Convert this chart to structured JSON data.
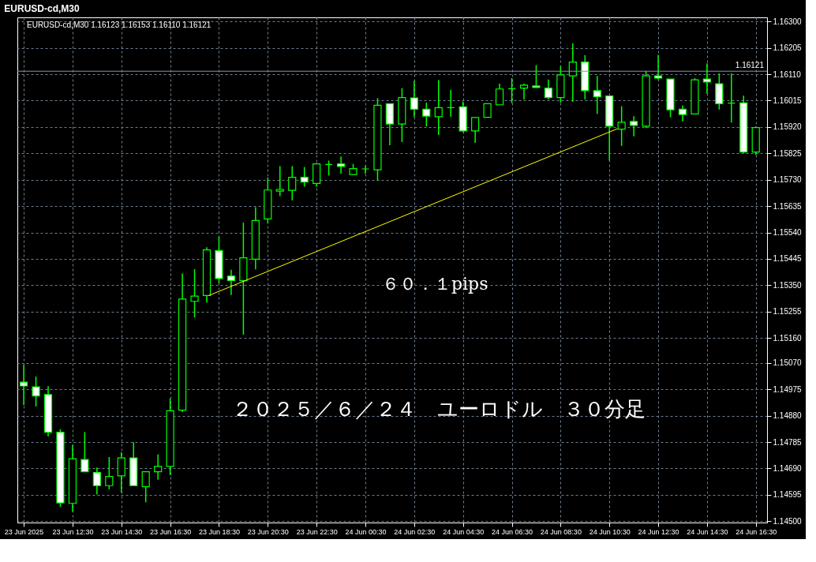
{
  "chart_data": {
    "type": "candlestick",
    "title": "EURUSD-cd,M30",
    "annotations": [
      "EURUSD-cd,M30  1.16123 1.16153 1.16110 1.16121",
      "６０．１pips",
      "２０２５／６／２４　ユーロドル　３０分足"
    ],
    "x": [
      "2025-06-23T10:30",
      "2025-06-23T11:00",
      "2025-06-23T11:30",
      "2025-06-23T12:00",
      "2025-06-23T12:30",
      "2025-06-23T13:00",
      "2025-06-23T13:30",
      "2025-06-23T14:00",
      "2025-06-23T14:30",
      "2025-06-23T15:00",
      "2025-06-23T15:30",
      "2025-06-23T16:00",
      "2025-06-23T16:30",
      "2025-06-23T17:00",
      "2025-06-23T17:30",
      "2025-06-23T18:00",
      "2025-06-23T18:30",
      "2025-06-23T19:00",
      "2025-06-23T19:30",
      "2025-06-23T20:00",
      "2025-06-23T20:30",
      "2025-06-23T21:00",
      "2025-06-23T21:30",
      "2025-06-23T22:00",
      "2025-06-23T22:30",
      "2025-06-23T23:00",
      "2025-06-23T23:30",
      "2025-06-24T00:00",
      "2025-06-24T00:30",
      "2025-06-24T01:00",
      "2025-06-24T01:30",
      "2025-06-24T02:00",
      "2025-06-24T02:30",
      "2025-06-24T03:00",
      "2025-06-24T03:30",
      "2025-06-24T04:00",
      "2025-06-24T04:30",
      "2025-06-24T05:00",
      "2025-06-24T05:30",
      "2025-06-24T06:00",
      "2025-06-24T06:30",
      "2025-06-24T07:00",
      "2025-06-24T07:30",
      "2025-06-24T08:00",
      "2025-06-24T08:30",
      "2025-06-24T09:00",
      "2025-06-24T09:30",
      "2025-06-24T10:00",
      "2025-06-24T10:30",
      "2025-06-24T11:00",
      "2025-06-24T11:30",
      "2025-06-24T12:00",
      "2025-06-24T12:30",
      "2025-06-24T13:00",
      "2025-06-24T13:30",
      "2025-06-24T14:00",
      "2025-06-24T14:30",
      "2025-06-24T15:00",
      "2025-06-24T15:30",
      "2025-06-24T16:00",
      "2025-06-24T16:30"
    ],
    "ohlc": [
      [
        1.15001,
        1.15063,
        1.14918,
        1.14987
      ],
      [
        1.14984,
        1.15021,
        1.14913,
        1.14951
      ],
      [
        1.14956,
        1.14986,
        1.14805,
        1.1482
      ],
      [
        1.1482,
        1.14831,
        1.14552,
        1.14566
      ],
      [
        1.14564,
        1.14774,
        1.14535,
        1.14725
      ],
      [
        1.14722,
        1.14821,
        1.14678,
        1.14678
      ],
      [
        1.14675,
        1.14693,
        1.14596,
        1.14628
      ],
      [
        1.14628,
        1.14731,
        1.14615,
        1.14661
      ],
      [
        1.14663,
        1.14748,
        1.14603,
        1.14728
      ],
      [
        1.14728,
        1.14784,
        1.14628,
        1.14628
      ],
      [
        1.14624,
        1.14678,
        1.14568,
        1.14678
      ],
      [
        1.14678,
        1.1474,
        1.14649,
        1.14697
      ],
      [
        1.14697,
        1.14942,
        1.14666,
        1.14898
      ],
      [
        1.149,
        1.15392,
        1.14893,
        1.153
      ],
      [
        1.15292,
        1.15408,
        1.15234,
        1.15311
      ],
      [
        1.15313,
        1.15487,
        1.15287,
        1.15477
      ],
      [
        1.15475,
        1.15525,
        1.15357,
        1.15374
      ],
      [
        1.15383,
        1.15406,
        1.15315,
        1.15367
      ],
      [
        1.15366,
        1.15576,
        1.15172,
        1.15449
      ],
      [
        1.15444,
        1.15631,
        1.15407,
        1.15583
      ],
      [
        1.15589,
        1.15738,
        1.15573,
        1.15693
      ],
      [
        1.15689,
        1.15779,
        1.15671,
        1.15695
      ],
      [
        1.15692,
        1.15779,
        1.15656,
        1.15739
      ],
      [
        1.15739,
        1.15776,
        1.15705,
        1.15722
      ],
      [
        1.15717,
        1.1579,
        1.15705,
        1.15787
      ],
      [
        1.15785,
        1.15799,
        1.15745,
        1.15785
      ],
      [
        1.15787,
        1.15814,
        1.15752,
        1.15778
      ],
      [
        1.15749,
        1.15787,
        1.15749,
        1.1577
      ],
      [
        1.15769,
        1.1578,
        1.15752,
        1.15769
      ],
      [
        1.15766,
        1.16024,
        1.15727,
        1.15998
      ],
      [
        1.16004,
        1.16004,
        1.15854,
        1.15931
      ],
      [
        1.15931,
        1.1606,
        1.15866,
        1.16026
      ],
      [
        1.16025,
        1.16086,
        1.15955,
        1.15984
      ],
      [
        1.15984,
        1.16008,
        1.15922,
        1.15959
      ],
      [
        1.15957,
        1.16089,
        1.15891,
        1.1599
      ],
      [
        1.1599,
        1.16054,
        1.15957,
        1.1599
      ],
      [
        1.15993,
        1.16012,
        1.15901,
        1.15906
      ],
      [
        1.15906,
        1.15954,
        1.15863,
        1.15954
      ],
      [
        1.15955,
        1.16004,
        1.15955,
        1.16004
      ],
      [
        1.16,
        1.16076,
        1.16,
        1.16057
      ],
      [
        1.16058,
        1.16096,
        1.16006,
        1.16058
      ],
      [
        1.1606,
        1.16076,
        1.16019,
        1.16071
      ],
      [
        1.16068,
        1.16143,
        1.16062,
        1.16062
      ],
      [
        1.1606,
        1.16091,
        1.16019,
        1.16026
      ],
      [
        1.16026,
        1.16139,
        1.16008,
        1.16108
      ],
      [
        1.16104,
        1.16221,
        1.16011,
        1.16154
      ],
      [
        1.16154,
        1.16179,
        1.16019,
        1.16051
      ],
      [
        1.16051,
        1.16104,
        1.15967,
        1.16029
      ],
      [
        1.16032,
        1.16032,
        1.15799,
        1.15923
      ],
      [
        1.15912,
        1.15995,
        1.15852,
        1.15937
      ],
      [
        1.1594,
        1.15959,
        1.15886,
        1.15926
      ],
      [
        1.15923,
        1.16121,
        1.15916,
        1.16104
      ],
      [
        1.16104,
        1.1618,
        1.16091,
        1.16096
      ],
      [
        1.16093,
        1.16093,
        1.15955,
        1.15982
      ],
      [
        1.15984,
        1.15998,
        1.1594,
        1.15965
      ],
      [
        1.15967,
        1.16096,
        1.15967,
        1.1609
      ],
      [
        1.16093,
        1.16149,
        1.16039,
        1.16082
      ],
      [
        1.16076,
        1.16113,
        1.15983,
        1.16004
      ],
      [
        1.16006,
        1.16113,
        1.15936,
        1.16006
      ],
      [
        1.16007,
        1.16033,
        1.15826,
        1.1583
      ],
      [
        1.1583,
        1.15922,
        1.15819,
        1.15918
      ]
    ],
    "series": [
      {
        "type": "line",
        "color": "#ffff00",
        "x": [
          "2025-06-23T18:05",
          "2025-06-24T10:50"
        ],
        "values": [
          1.15313,
          1.15914
        ]
      }
    ],
    "xlim": [
      "2025-06-23T10:24",
      "2025-06-24T16:48"
    ],
    "xticks": [
      {
        "value": "2025-06-23T10:30",
        "label": "23 Jun 2025"
      },
      {
        "value": "2025-06-23T12:30",
        "label": "23 Jun 12:30"
      },
      {
        "value": "2025-06-23T14:30",
        "label": "23 Jun 14:30"
      },
      {
        "value": "2025-06-23T16:30",
        "label": "23 Jun 16:30"
      },
      {
        "value": "2025-06-23T18:30",
        "label": "23 Jun 18:30"
      },
      {
        "value": "2025-06-23T20:30",
        "label": "23 Jun 20:30"
      },
      {
        "value": "2025-06-23T22:30",
        "label": "23 Jun 22:30"
      },
      {
        "value": "2025-06-24T00:30",
        "label": "24 Jun 00:30"
      },
      {
        "value": "2025-06-24T02:30",
        "label": "24 Jun 02:30"
      },
      {
        "value": "2025-06-24T04:30",
        "label": "24 Jun 04:30"
      },
      {
        "value": "2025-06-24T06:30",
        "label": "24 Jun 06:30"
      },
      {
        "value": "2025-06-24T08:30",
        "label": "24 Jun 08:30"
      },
      {
        "value": "2025-06-24T10:30",
        "label": "24 Jun 10:30"
      },
      {
        "value": "2025-06-24T12:30",
        "label": "24 Jun 12:30"
      },
      {
        "value": "2025-06-24T14:30",
        "label": "24 Jun 14:30"
      },
      {
        "value": "2025-06-24T16:30",
        "label": "24 Jun 16:30"
      }
    ],
    "ylim": [
      1.14495,
      1.16315
    ],
    "yticks": [
      {
        "value": 1.163,
        "label": "1.16300"
      },
      {
        "value": 1.16205,
        "label": "1.16205"
      },
      {
        "value": 1.1611,
        "label": "1.16110"
      },
      {
        "value": 1.16015,
        "label": "1.16015"
      },
      {
        "value": 1.1592,
        "label": "1.15920"
      },
      {
        "value": 1.15825,
        "label": "1.15825"
      },
      {
        "value": 1.1573,
        "label": "1.15730"
      },
      {
        "value": 1.15635,
        "label": "1.15635"
      },
      {
        "value": 1.1554,
        "label": "1.15540"
      },
      {
        "value": 1.15445,
        "label": "1.15445"
      },
      {
        "value": 1.1535,
        "label": "1.15350"
      },
      {
        "value": 1.15255,
        "label": "1.15255"
      },
      {
        "value": 1.1516,
        "label": "1.15160"
      },
      {
        "value": 1.1507,
        "label": "1.15070"
      },
      {
        "value": 1.14975,
        "label": "1.14975"
      },
      {
        "value": 1.1488,
        "label": "1.14880"
      },
      {
        "value": 1.14785,
        "label": "1.14785"
      },
      {
        "value": 1.1469,
        "label": "1.14690"
      },
      {
        "value": 1.14595,
        "label": "1.14595"
      },
      {
        "value": 1.145,
        "label": "1.14500"
      }
    ],
    "ref_lines": [
      {
        "axis": "y",
        "value": 1.16121,
        "label": "1.16121",
        "color": "#8c96a0"
      }
    ],
    "grid": true
  }
}
